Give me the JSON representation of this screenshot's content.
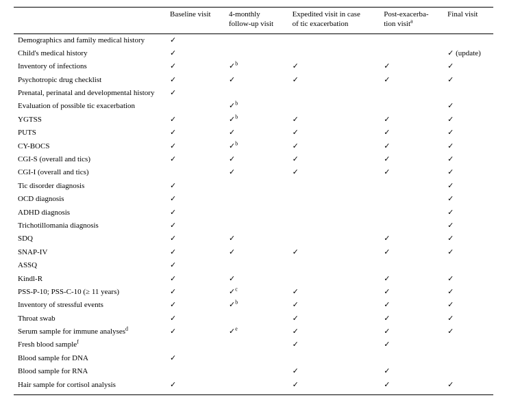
{
  "columns": [
    "",
    "Baseline visit",
    "4-monthly follow-up visit",
    "Expedited visit in case of tic exacerbation",
    "Post-exacerba­tion visitᵃ",
    "Final visit"
  ],
  "superscripts": {
    "a": "a",
    "b": "b",
    "c": "c",
    "d": "d",
    "e": "e",
    "f": "f"
  },
  "tick": "✓",
  "update": "✓ (update)",
  "rows": [
    {
      "label": "Demographics and family medical history",
      "cells": [
        "t",
        "",
        "",
        "",
        ""
      ]
    },
    {
      "label": "Child's medical history",
      "cells": [
        "t",
        "",
        "",
        "",
        "upd"
      ]
    },
    {
      "label": "Inventory of infections",
      "cells": [
        "t",
        "tb",
        "t",
        "t",
        "t"
      ]
    },
    {
      "label": "Psychotropic drug checklist",
      "cells": [
        "t",
        "t",
        "t",
        "t",
        "t"
      ]
    },
    {
      "label": "Prenatal, perinatal and developmental history",
      "cells": [
        "t",
        "",
        "",
        "",
        ""
      ]
    },
    {
      "label": "Evaluation of possible tic exacerbation",
      "cells": [
        "",
        "tb",
        "",
        "",
        "t"
      ]
    },
    {
      "label": "YGTSS",
      "cells": [
        "t",
        "tb",
        "t",
        "t",
        "t"
      ]
    },
    {
      "label": "PUTS",
      "cells": [
        "t",
        "t",
        "t",
        "t",
        "t"
      ]
    },
    {
      "label": "CY-BOCS",
      "cells": [
        "t",
        "tb",
        "t",
        "t",
        "t"
      ]
    },
    {
      "label": "CGI-S (overall and tics)",
      "cells": [
        "t",
        "t",
        "t",
        "t",
        "t"
      ]
    },
    {
      "label": "CGI-I (overall and tics)",
      "cells": [
        "",
        "t",
        "t",
        "t",
        "t"
      ]
    },
    {
      "label": "Tic disorder diagnosis",
      "cells": [
        "t",
        "",
        "",
        "",
        "t"
      ]
    },
    {
      "label": "OCD diagnosis",
      "cells": [
        "t",
        "",
        "",
        "",
        "t"
      ]
    },
    {
      "label": "ADHD diagnosis",
      "cells": [
        "t",
        "",
        "",
        "",
        "t"
      ]
    },
    {
      "label": "Trichotillomania diagnosis",
      "cells": [
        "t",
        "",
        "",
        "",
        "t"
      ]
    },
    {
      "label": "SDQ",
      "cells": [
        "t",
        "t",
        "",
        "t",
        "t"
      ]
    },
    {
      "label": "SNAP-IV",
      "cells": [
        "t",
        "t",
        "t",
        "t",
        "t"
      ]
    },
    {
      "label": "ASSQ",
      "cells": [
        "t",
        "",
        "",
        "",
        ""
      ]
    },
    {
      "label": "Kindl-R",
      "cells": [
        "t",
        "t",
        "",
        "t",
        "t"
      ]
    },
    {
      "label": "PSS-P-10; PSS-C-10 (≥ 11 years)",
      "cells": [
        "t",
        "tc",
        "t",
        "t",
        "t"
      ]
    },
    {
      "label": "Inventory of stressful events",
      "cells": [
        "t",
        "tb",
        "t",
        "t",
        "t"
      ]
    },
    {
      "label": "Throat swab",
      "cells": [
        "t",
        "",
        "t",
        "t",
        "t"
      ]
    },
    {
      "label": "Serum sample for immune analyses",
      "sup": "d",
      "cells": [
        "t",
        "te",
        "t",
        "t",
        "t"
      ]
    },
    {
      "label": "Fresh blood sample",
      "sup": "f",
      "cells": [
        "",
        "",
        "t",
        "t",
        ""
      ]
    },
    {
      "label": "Blood sample for DNA",
      "cells": [
        "t",
        "",
        "",
        "",
        ""
      ]
    },
    {
      "label": "Blood sample for RNA",
      "cells": [
        "",
        "",
        "t",
        "t",
        ""
      ]
    },
    {
      "label": "Hair sample for cortisol analysis",
      "cells": [
        "t",
        "",
        "t",
        "t",
        "t"
      ]
    }
  ]
}
